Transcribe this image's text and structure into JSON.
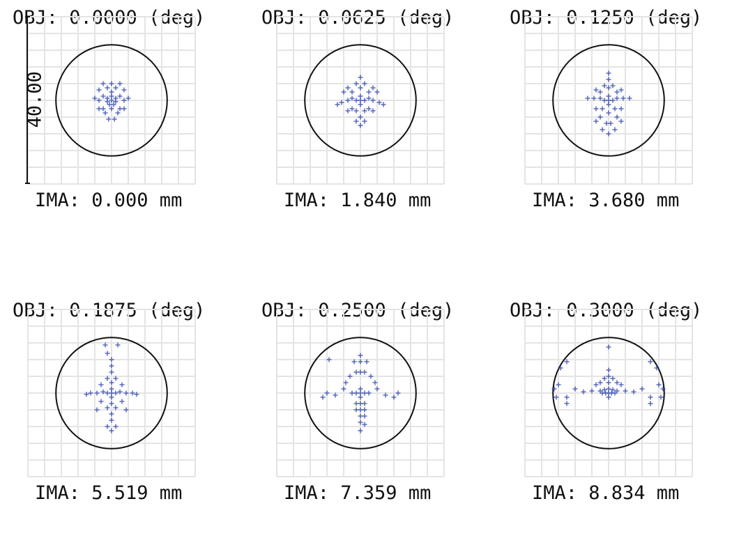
{
  "chart_data": {
    "type": "scatter",
    "subtype": "spot-diagram",
    "scale_bar": {
      "label": "40.00",
      "unit_note": "full box height"
    },
    "grid": true,
    "grid_divisions": 10,
    "airy_radius": 13.3,
    "colors": {
      "spots": "#3a4fb0",
      "grid": "#e4e4e4",
      "airy": "#111111"
    },
    "panels": [
      {
        "obj": "OBJ: 0.0000 (deg)",
        "ima": "IMA: 0.000 mm",
        "points": [
          [
            0,
            0
          ],
          [
            1,
            0.5
          ],
          [
            -1,
            0.5
          ],
          [
            0.5,
            -1
          ],
          [
            -0.5,
            -1
          ],
          [
            0,
            1
          ],
          [
            2,
            1
          ],
          [
            -2,
            1
          ],
          [
            0,
            2
          ],
          [
            0,
            -2
          ],
          [
            3,
            0
          ],
          [
            -3,
            0
          ],
          [
            2,
            -2
          ],
          [
            -2,
            -2
          ],
          [
            1,
            3
          ],
          [
            -1,
            3
          ],
          [
            0,
            4
          ],
          [
            3,
            2.5
          ],
          [
            -3,
            2.5
          ],
          [
            4,
            0.5
          ],
          [
            -4,
            0.5
          ],
          [
            1.5,
            -3
          ],
          [
            -1.5,
            -3
          ],
          [
            3,
            -2
          ],
          [
            -3,
            -2
          ],
          [
            0.7,
            -4.5
          ],
          [
            -0.7,
            -4.5
          ],
          [
            2,
            4
          ],
          [
            -2,
            4
          ],
          [
            1,
            -0.3
          ],
          [
            -1,
            -0.3
          ]
        ]
      },
      {
        "obj": "OBJ: 0.0625 (deg)",
        "ima": "IMA: 1.840 mm",
        "points": [
          [
            0,
            0
          ],
          [
            1,
            0
          ],
          [
            -1,
            0
          ],
          [
            0,
            1
          ],
          [
            0,
            -1
          ],
          [
            2,
            0.5
          ],
          [
            -2,
            0.5
          ],
          [
            3,
            0
          ],
          [
            -3,
            0
          ],
          [
            4.5,
            -0.5
          ],
          [
            -4.5,
            -0.5
          ],
          [
            5.5,
            -1
          ],
          [
            -5.5,
            -1
          ],
          [
            0,
            3
          ],
          [
            1,
            4
          ],
          [
            -1,
            4
          ],
          [
            0,
            5.5
          ],
          [
            2,
            2
          ],
          [
            -2,
            2
          ],
          [
            3,
            3
          ],
          [
            -3,
            3
          ],
          [
            1,
            -2.5
          ],
          [
            -1,
            -2.5
          ],
          [
            2,
            -2
          ],
          [
            -2,
            -2
          ],
          [
            0,
            -4
          ],
          [
            1,
            -5
          ],
          [
            -1,
            -5
          ],
          [
            0,
            -6
          ],
          [
            4,
            2
          ],
          [
            -4,
            2
          ],
          [
            3,
            -2.5
          ],
          [
            -3,
            -2.5
          ]
        ]
      },
      {
        "obj": "OBJ: 0.1250 (deg)",
        "ima": "IMA: 3.680 mm",
        "points": [
          [
            0,
            0
          ],
          [
            1,
            0
          ],
          [
            -1,
            0
          ],
          [
            0,
            1
          ],
          [
            0,
            -1
          ],
          [
            2,
            0.5
          ],
          [
            -2,
            0.5
          ],
          [
            3.5,
            0.5
          ],
          [
            -3.5,
            0.5
          ],
          [
            5,
            0.5
          ],
          [
            -5,
            0.5
          ],
          [
            0,
            3
          ],
          [
            0,
            5
          ],
          [
            0,
            6.5
          ],
          [
            1,
            3.5
          ],
          [
            -1,
            3.5
          ],
          [
            2,
            2
          ],
          [
            -2,
            2
          ],
          [
            3,
            2.5
          ],
          [
            -3,
            2.5
          ],
          [
            1.5,
            -2
          ],
          [
            -1.5,
            -2
          ],
          [
            3,
            -2
          ],
          [
            -3,
            -2
          ],
          [
            0,
            -3
          ],
          [
            2,
            -4
          ],
          [
            -2,
            -4
          ],
          [
            0.5,
            -5.5
          ],
          [
            -0.5,
            -5.5
          ],
          [
            1.5,
            -7
          ],
          [
            -1.5,
            -7
          ],
          [
            0,
            -8
          ],
          [
            3,
            -5
          ],
          [
            -3,
            -5
          ]
        ]
      },
      {
        "obj": "OBJ: 0.1875 (deg)",
        "ima": "IMA: 5.519 mm",
        "points": [
          [
            0,
            0
          ],
          [
            0,
            1
          ],
          [
            0,
            -1
          ],
          [
            1,
            0
          ],
          [
            -1,
            0
          ],
          [
            2,
            0.3
          ],
          [
            -2,
            0.3
          ],
          [
            3.5,
            0
          ],
          [
            -3.5,
            0
          ],
          [
            5,
            0
          ],
          [
            -5,
            0
          ],
          [
            6,
            -0.3
          ],
          [
            -6,
            -0.3
          ],
          [
            0,
            2.5
          ],
          [
            1,
            3.5
          ],
          [
            -1,
            3.5
          ],
          [
            0,
            5
          ],
          [
            0,
            6.5
          ],
          [
            0,
            8
          ],
          [
            -1,
            9.5
          ],
          [
            1.5,
            11.5
          ],
          [
            -1.5,
            11.5
          ],
          [
            0,
            -2.5
          ],
          [
            1,
            -3.5
          ],
          [
            -1,
            -3.5
          ],
          [
            0,
            -5
          ],
          [
            0,
            -6.5
          ],
          [
            1,
            -8
          ],
          [
            -1,
            -8
          ],
          [
            0,
            -9
          ],
          [
            2.5,
            2
          ],
          [
            -2.5,
            2
          ],
          [
            2.5,
            -2
          ],
          [
            -2.5,
            -2
          ],
          [
            3.5,
            -4
          ],
          [
            -3.5,
            -4
          ]
        ]
      },
      {
        "obj": "OBJ: 0.2500 (deg)",
        "ima": "IMA: 7.359 mm",
        "points": [
          [
            0,
            0
          ],
          [
            1,
            0
          ],
          [
            -1,
            0
          ],
          [
            0,
            1
          ],
          [
            0,
            -1
          ],
          [
            2,
            0
          ],
          [
            -2,
            0
          ],
          [
            0,
            9
          ],
          [
            0,
            7.5
          ],
          [
            1.5,
            7.5
          ],
          [
            -1.5,
            7.5
          ],
          [
            -7.5,
            8
          ],
          [
            0,
            5
          ],
          [
            1,
            5
          ],
          [
            -1,
            5
          ],
          [
            2.5,
            4
          ],
          [
            -2.5,
            4
          ],
          [
            3.5,
            2.5
          ],
          [
            -3.5,
            2.5
          ],
          [
            4,
            1
          ],
          [
            -4,
            1
          ],
          [
            6,
            -0.5
          ],
          [
            -6,
            -0.5
          ],
          [
            -8,
            0
          ],
          [
            -9,
            -1
          ],
          [
            8,
            -1
          ],
          [
            9,
            0
          ],
          [
            0,
            -2.5
          ],
          [
            1,
            -2.5
          ],
          [
            -1,
            -2.5
          ],
          [
            0,
            -4
          ],
          [
            1,
            -4
          ],
          [
            -1,
            -4
          ],
          [
            0,
            -5.5
          ],
          [
            1,
            -5.5
          ],
          [
            0,
            -7
          ],
          [
            1,
            -7.5
          ],
          [
            0,
            -9
          ]
        ]
      },
      {
        "obj": "OBJ: 0.3000 (deg)",
        "ima": "IMA: 8.834 mm",
        "points": [
          [
            0,
            0
          ],
          [
            0.7,
            0
          ],
          [
            -0.7,
            0
          ],
          [
            1.5,
            0
          ],
          [
            -1.5,
            0
          ],
          [
            0,
            1
          ],
          [
            0,
            -1
          ],
          [
            1,
            0.8
          ],
          [
            -1,
            0.8
          ],
          [
            2,
            0.5
          ],
          [
            -2,
            0.5
          ],
          [
            0,
            2.5
          ],
          [
            0,
            4
          ],
          [
            0,
            5.5
          ],
          [
            0,
            11
          ],
          [
            1,
            3.5
          ],
          [
            -1,
            3.5
          ],
          [
            2,
            2.5
          ],
          [
            -2,
            2.5
          ],
          [
            3,
            2
          ],
          [
            -3,
            2
          ],
          [
            -10,
            7.5
          ],
          [
            10,
            7.5
          ],
          [
            -11.5,
            6
          ],
          [
            11.5,
            6
          ],
          [
            -12,
            2
          ],
          [
            12,
            2
          ],
          [
            -13,
            1
          ],
          [
            13,
            1
          ],
          [
            -12.5,
            -1
          ],
          [
            12.5,
            -1
          ],
          [
            -10,
            -1
          ],
          [
            10,
            -1
          ],
          [
            -8,
            1
          ],
          [
            8,
            1
          ],
          [
            -6,
            0.3
          ],
          [
            6,
            0.3
          ],
          [
            -4,
            0.5
          ],
          [
            4,
            0.5
          ],
          [
            -10,
            -2.5
          ],
          [
            10,
            -2.5
          ]
        ]
      }
    ]
  }
}
